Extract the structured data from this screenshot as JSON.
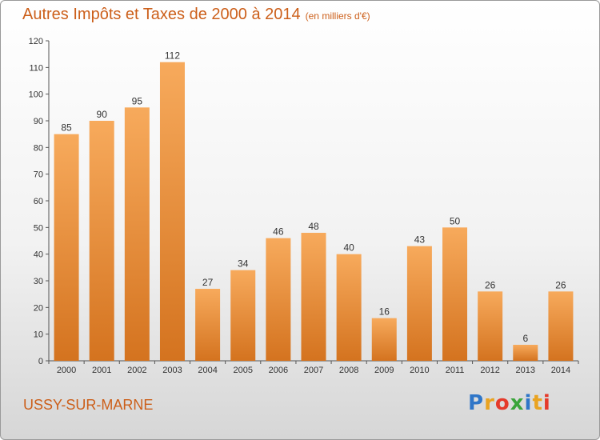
{
  "header": {
    "title": "Autres Impôts et Taxes de 2000 à 2014",
    "subtitle": "(en milliers d'€)"
  },
  "footer": {
    "commune": "USSY-SUR-MARNE",
    "brand_letters": [
      "P",
      "r",
      "o",
      "x",
      "i",
      "t",
      "i"
    ]
  },
  "colors": {
    "bar_light": "#f7aa5c",
    "bar_dark": "#d4731f",
    "title": "#cc5f1a"
  },
  "chart_data": {
    "type": "bar",
    "categories": [
      "2000",
      "2001",
      "2002",
      "2003",
      "2004",
      "2005",
      "2006",
      "2007",
      "2008",
      "2009",
      "2010",
      "2011",
      "2012",
      "2013",
      "2014"
    ],
    "values": [
      85,
      90,
      95,
      112,
      27,
      34,
      46,
      48,
      40,
      16,
      43,
      50,
      26,
      6,
      26
    ],
    "title": "Autres Impôts et Taxes de 2000 à 2014",
    "subtitle": "(en milliers d'€)",
    "ylim": [
      0,
      120
    ],
    "yticks": [
      0,
      10,
      20,
      30,
      40,
      50,
      60,
      70,
      80,
      90,
      100,
      110,
      120
    ],
    "grid": false,
    "data_labels": true
  }
}
